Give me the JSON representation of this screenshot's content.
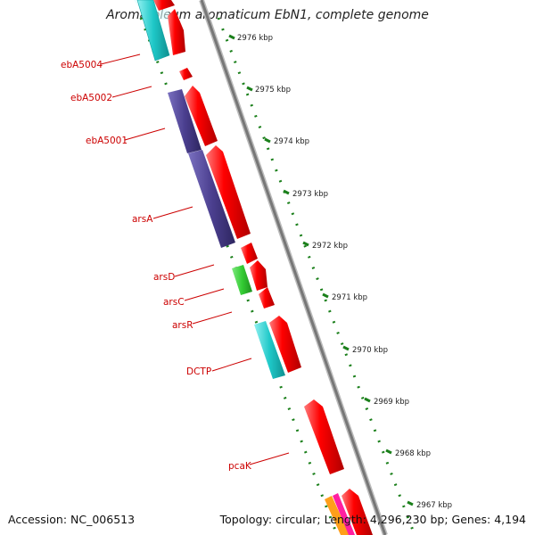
{
  "title": "Aromatoleum aromaticum EbN1, complete genome",
  "footer": {
    "accession": "Accession: NC_006513",
    "summary": "Topology: circular; Length: 4,296,230 bp; Genes: 4,194"
  },
  "scale_labels": [
    "2976 kbp",
    "2975 kbp",
    "2974 kbp",
    "2973 kbp",
    "2972 kbp",
    "2971 kbp",
    "2970 kbp",
    "2969 kbp",
    "2968 kbp",
    "2967 kbp"
  ],
  "gene_labels": [
    "ebA5004",
    "ebA5002",
    "ebA5001",
    "arsA",
    "arsD",
    "arsC",
    "arsR",
    "DCTP",
    "pcaK"
  ],
  "colors": {
    "forward_gene": "#ff0000",
    "label": "#cc0000",
    "arsA_arsD_feature": "#4b3f8f",
    "arsD_feature": "#33cc33",
    "dctp_feature": "#1ec8c8",
    "top_feature": "#22e0f0",
    "backbone": "#888888",
    "tick": "#1a7f1a"
  }
}
